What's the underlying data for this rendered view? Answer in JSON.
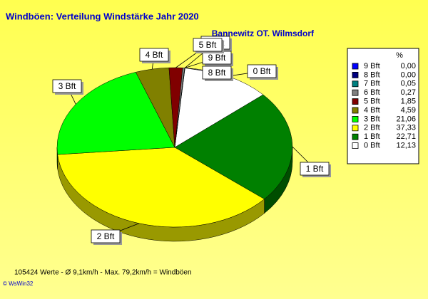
{
  "chart_data": {
    "type": "pie",
    "title": "Windböen: Verteilung Windstärke  Jahr 2020",
    "subtitle": "Bannewitz OT. Wilmsdorf",
    "legend_title": "%",
    "categories": [
      "9 Bft",
      "8 Bft",
      "7 Bft",
      "6 Bft",
      "5 Bft",
      "4 Bft",
      "3 Bft",
      "2 Bft",
      "1 Bft",
      "0 Bft"
    ],
    "values": [
      0,
      0,
      0.05,
      0.27,
      1.85,
      4.59,
      21.06,
      37.33,
      22.71,
      12.13
    ],
    "value_labels": [
      "0,00",
      "0,00",
      "0,05",
      "0,27",
      "1,85",
      "4,59",
      "21,06",
      "37,33",
      "22,71",
      "12,13"
    ],
    "colors": [
      "#0000ff",
      "#000080",
      "#008080",
      "#808080",
      "#800000",
      "#808000",
      "#00ff00",
      "#ffff00",
      "#008000",
      "#ffffff"
    ],
    "note": "105424 Werte   -   Ø 9,1km/h  -  Max. 79,2km/h = Windböen",
    "credit": "© WsWin32"
  }
}
